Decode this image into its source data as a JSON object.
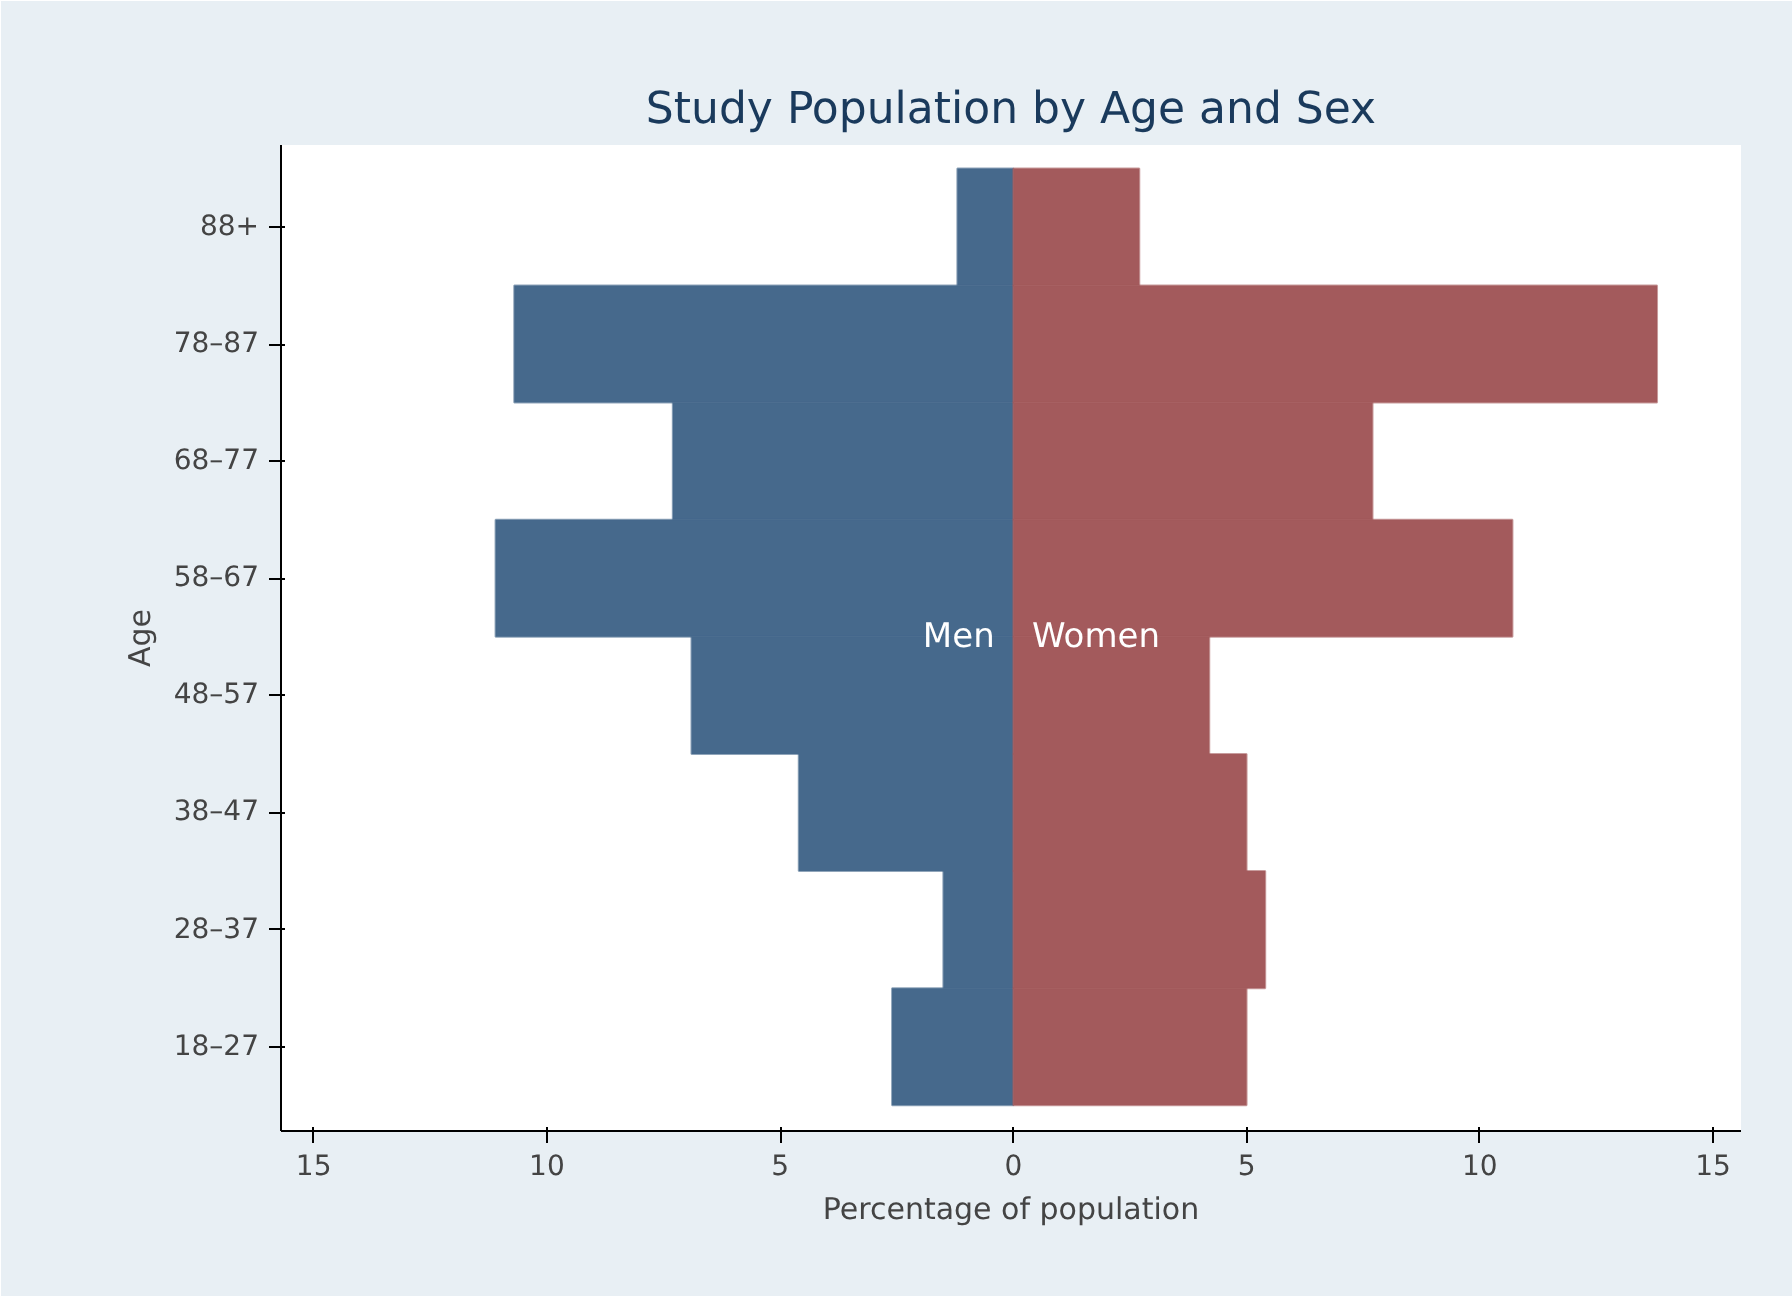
{
  "chart_data": {
    "type": "bar",
    "orientation": "horizontal",
    "title": "Study Population by Age and Sex",
    "xlabel": "Percentage of population",
    "ylabel": "Age",
    "categories": [
      "88+",
      "78–87",
      "68–77",
      "58–67",
      "48–57",
      "38–47",
      "28–37",
      "18–27"
    ],
    "series": [
      {
        "name": "Men",
        "color": "#46698c",
        "values": [
          -1.2,
          -10.7,
          -7.3,
          -11.1,
          -6.9,
          -4.6,
          -1.5,
          -2.6
        ]
      },
      {
        "name": "Women",
        "color": "#a35a5c",
        "values": [
          2.7,
          13.8,
          7.7,
          10.7,
          4.2,
          5.0,
          5.4,
          5.0
        ]
      }
    ],
    "xlim": [
      -15.7,
      15.6
    ],
    "xticks": [
      {
        "value": -15,
        "label": "15"
      },
      {
        "value": -10,
        "label": "10"
      },
      {
        "value": -5,
        "label": "5"
      },
      0,
      5,
      10,
      15
    ],
    "stacked": true,
    "grid": false,
    "legend": false
  }
}
